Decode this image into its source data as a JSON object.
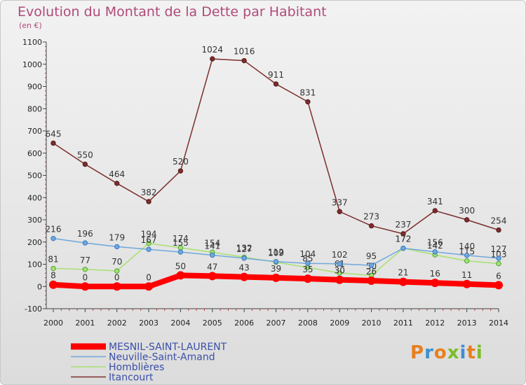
{
  "header": {
    "title": "Evolution du Montant de la Dette par Habitant",
    "unit": "(en €)"
  },
  "logo": {
    "text": "Proxiti",
    "colors": [
      "#e87f1e",
      "#3d8fd1",
      "#e87f1e",
      "#7bbd2a",
      "#3d8fd1",
      "#e87f1e",
      "#7bbd2a"
    ]
  },
  "chart_data": {
    "type": "line",
    "title": "Evolution du Montant de la Dette par Habitant",
    "ylabel": "(en €)",
    "xlabel": "",
    "ylim": [
      -100,
      1100
    ],
    "yticks": [
      -100,
      0,
      100,
      200,
      300,
      400,
      500,
      600,
      700,
      800,
      900,
      1000,
      1100
    ],
    "x": [
      "2000",
      "2001",
      "2002",
      "2003",
      "2004",
      "2005",
      "2006",
      "2007",
      "2008",
      "2009",
      "2010",
      "2011",
      "2012",
      "2013",
      "2014"
    ],
    "grid": false,
    "legend_position": "bottom-left",
    "series": [
      {
        "name": "MESNIL-SAINT-LAURENT",
        "color": "#ff0000",
        "width": 8,
        "values": [
          8,
          0,
          0,
          0,
          50,
          47,
          43,
          39,
          35,
          30,
          26,
          21,
          16,
          11,
          6
        ]
      },
      {
        "name": "Neuville-Saint-Amand",
        "color": "#6fa8dc",
        "width": 1.5,
        "values": [
          216,
          196,
          179,
          167,
          155,
          141,
          127,
          112,
          104,
          102,
          95,
          172,
          156,
          140,
          127
        ]
      },
      {
        "name": "Homblières",
        "color": "#a8e070",
        "width": 1.5,
        "values": [
          81,
          77,
          70,
          194,
          174,
          154,
          132,
          109,
          85,
          61,
          50,
          172,
          142,
          115,
          103
        ]
      },
      {
        "name": "Itancourt",
        "color": "#7b2d2d",
        "width": 1.5,
        "values": [
          645,
          550,
          464,
          382,
          520,
          1024,
          1016,
          911,
          831,
          337,
          273,
          237,
          341,
          300,
          254
        ]
      }
    ]
  }
}
